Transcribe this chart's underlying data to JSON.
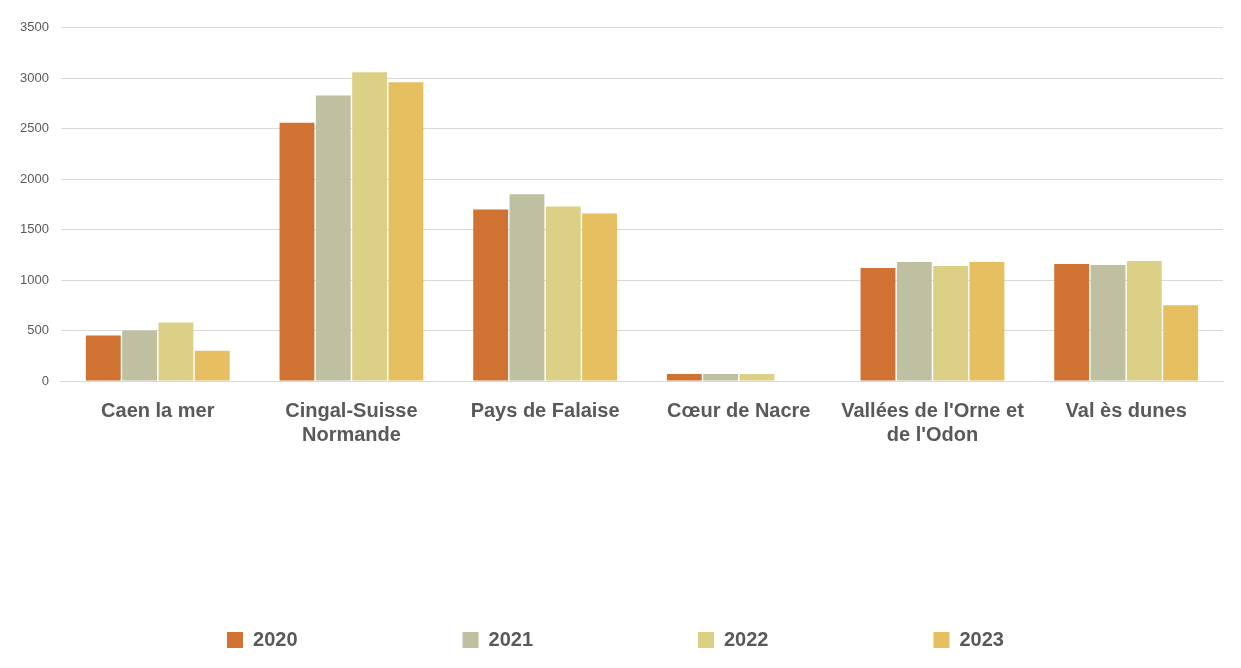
{
  "chart_data": {
    "type": "bar",
    "categories": [
      "Caen la mer",
      "Cingal-Suisse Normande",
      "Pays de Falaise",
      "Cœur de Nacre",
      "Vallées de l'Orne et de l'Odon",
      "Val ès dunes"
    ],
    "series": [
      {
        "name": "2020",
        "color": "#d07232",
        "values": [
          450,
          2560,
          1700,
          70,
          1120,
          1160
        ]
      },
      {
        "name": "2021",
        "color": "#bfbfa1",
        "values": [
          500,
          2830,
          1850,
          70,
          1180,
          1150
        ]
      },
      {
        "name": "2022",
        "color": "#dcd086",
        "values": [
          580,
          3060,
          1730,
          70,
          1140,
          1190
        ]
      },
      {
        "name": "2023",
        "color": "#e5bf60",
        "values": [
          300,
          2960,
          1660,
          null,
          1180,
          750
        ]
      }
    ],
    "ylim": [
      0,
      3500
    ],
    "yticks": [
      0,
      500,
      1000,
      1500,
      2000,
      2500,
      3000,
      3500
    ],
    "grid": "y",
    "legend": "bottom"
  }
}
